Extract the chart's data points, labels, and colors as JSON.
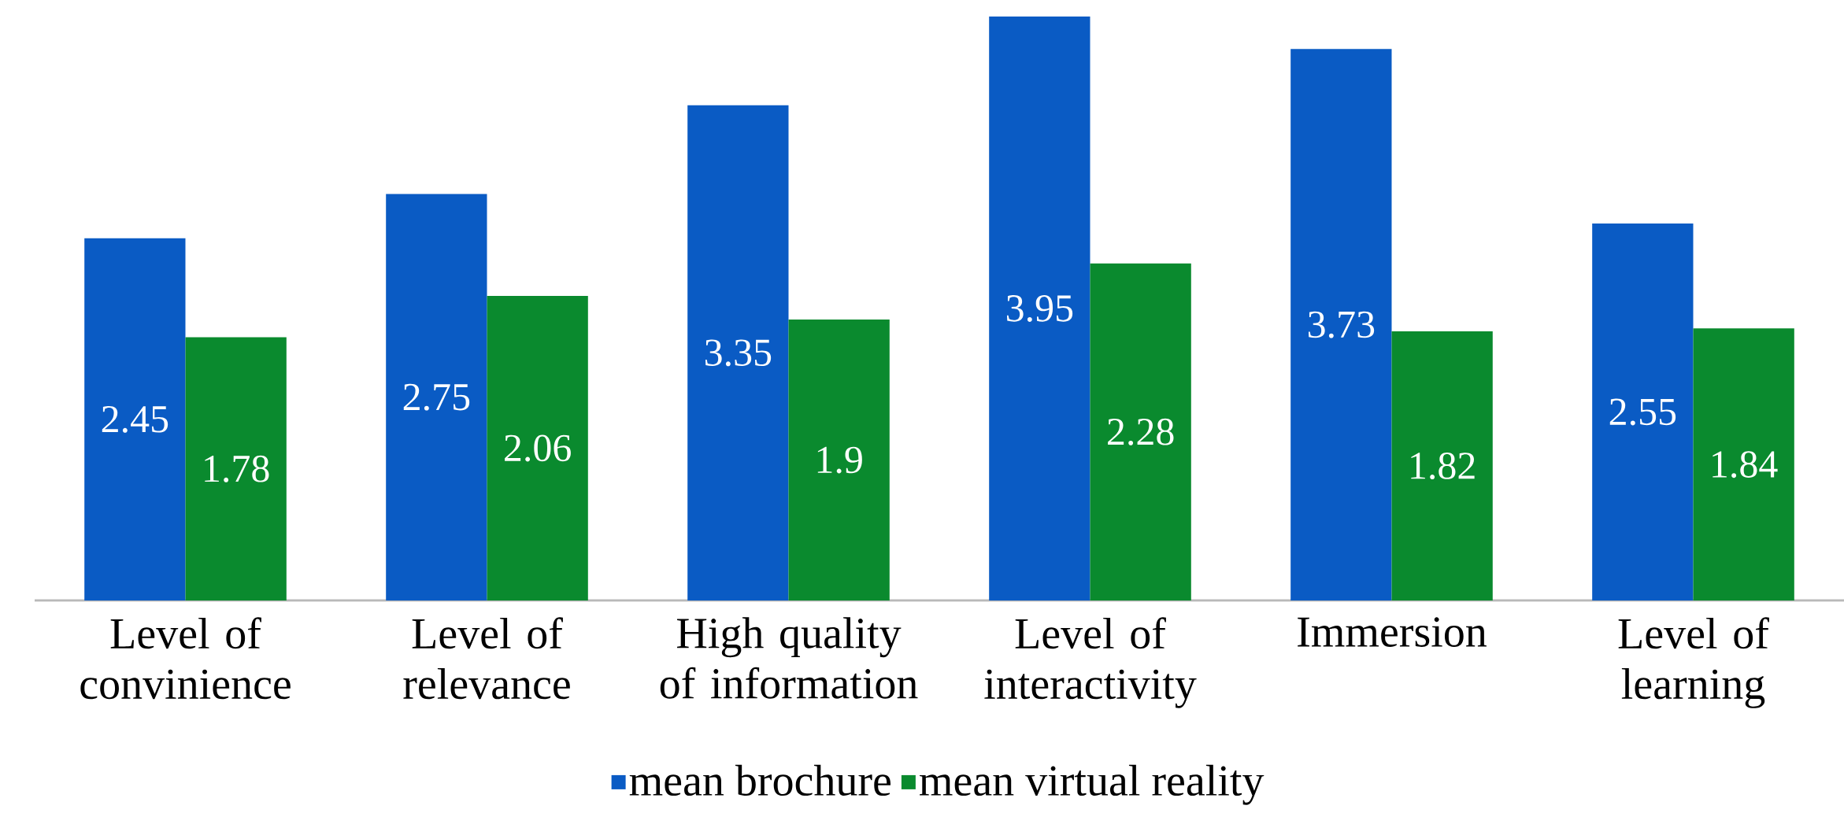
{
  "chart_data": {
    "type": "bar",
    "categories": [
      "Level of convinience",
      "Level of relevance",
      "High quality of information",
      "Level of interactivity",
      "Immersion",
      "Level of learning"
    ],
    "series": [
      {
        "name": "mean brochure",
        "color": "#0a5bc4",
        "values": [
          2.45,
          2.75,
          3.35,
          3.95,
          3.73,
          2.55
        ]
      },
      {
        "name": "mean virtual reality",
        "color": "#0a8a2e",
        "values": [
          1.78,
          2.06,
          1.9,
          2.28,
          1.82,
          1.84
        ]
      }
    ],
    "data_labels": true,
    "legend": "bottom",
    "grid": false
  }
}
